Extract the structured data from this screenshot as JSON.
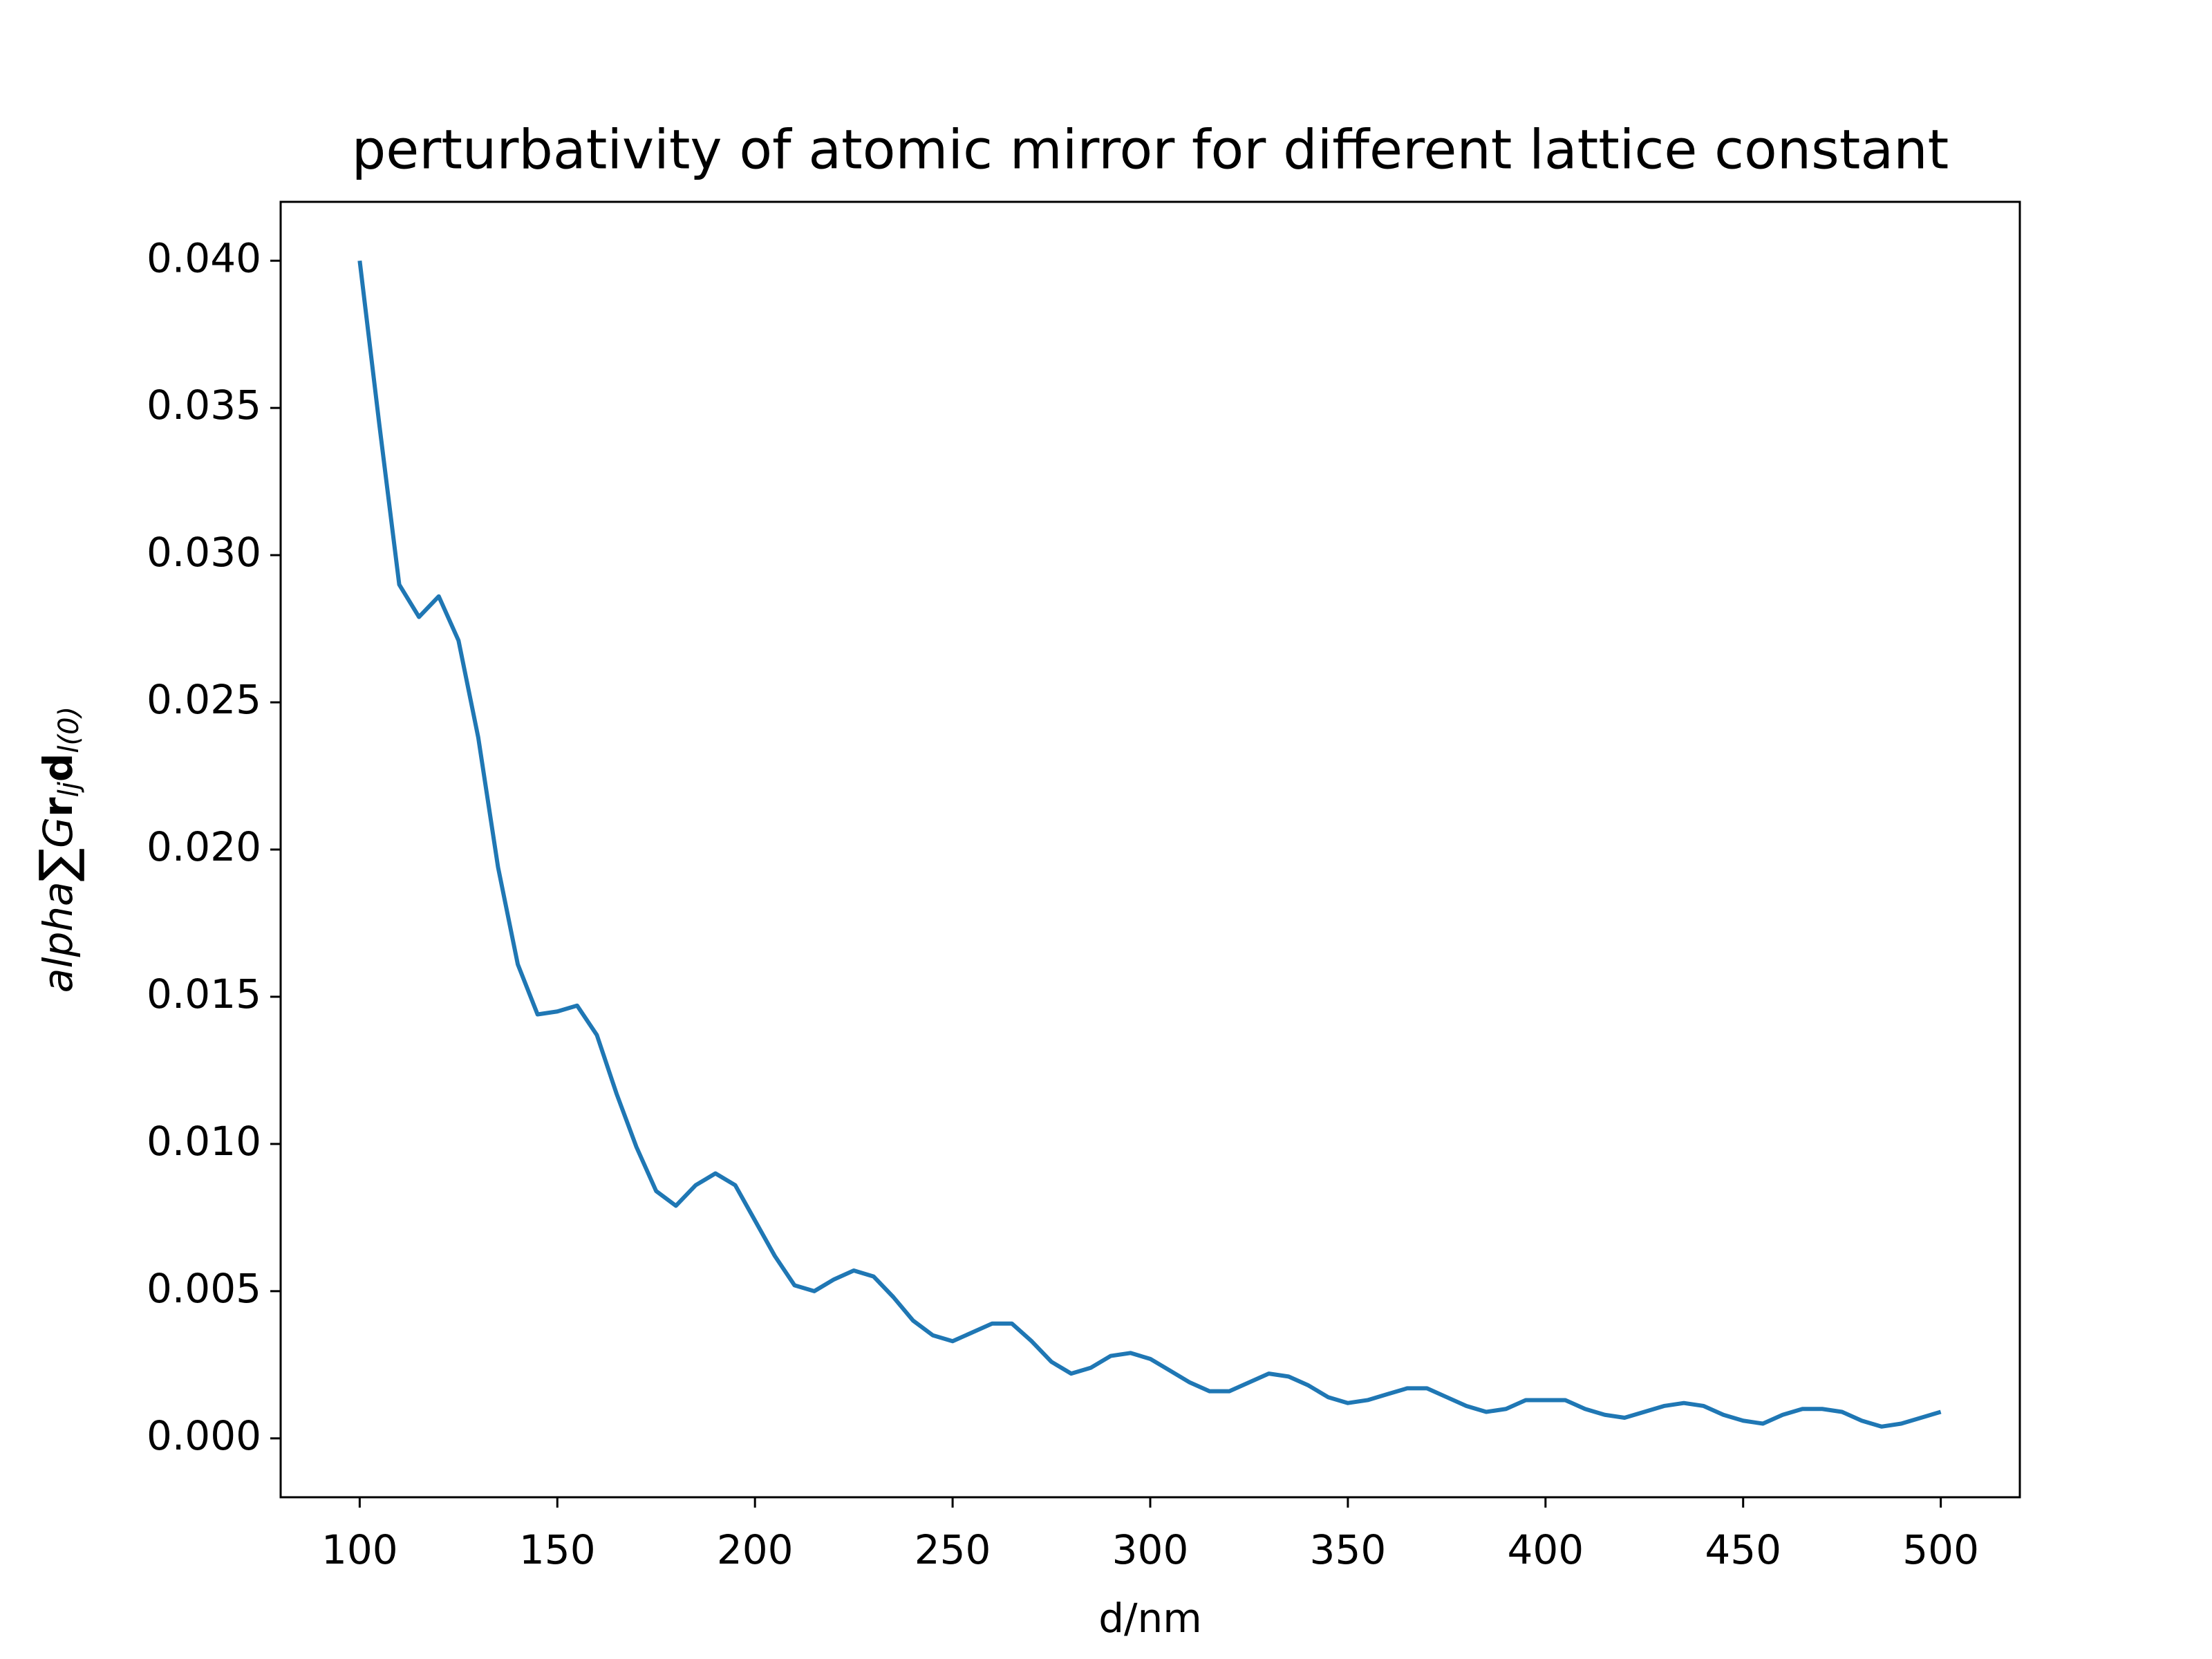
{
  "chart_data": {
    "type": "line",
    "title": "perturbativity of atomic mirror for different lattice constant",
    "xlabel": "d/nm",
    "ylabel": [
      "alpha",
      "∑",
      "G",
      "r",
      "lj",
      "d",
      "l(0)"
    ],
    "x": [
      100,
      105,
      110,
      115,
      120,
      125,
      130,
      135,
      140,
      145,
      150,
      155,
      160,
      165,
      170,
      175,
      180,
      185,
      190,
      195,
      200,
      205,
      210,
      215,
      220,
      225,
      230,
      235,
      240,
      245,
      250,
      255,
      260,
      265,
      270,
      275,
      280,
      285,
      290,
      295,
      300,
      305,
      310,
      315,
      320,
      325,
      330,
      335,
      340,
      345,
      350,
      355,
      360,
      365,
      370,
      375,
      380,
      385,
      390,
      395,
      400,
      405,
      410,
      415,
      420,
      425,
      430,
      435,
      440,
      445,
      450,
      455,
      460,
      465,
      470,
      475,
      480,
      485,
      490,
      495,
      500
    ],
    "series": [
      {
        "color": "#1f77b4",
        "values": [
          0.04,
          0.0344,
          0.029,
          0.0279,
          0.0286,
          0.0271,
          0.0238,
          0.0194,
          0.0161,
          0.0144,
          0.0145,
          0.0147,
          0.0137,
          0.0117,
          0.0099,
          0.0084,
          0.0079,
          0.0086,
          0.009,
          0.0086,
          0.0074,
          0.0062,
          0.0052,
          0.005,
          0.0054,
          0.0057,
          0.0055,
          0.0048,
          0.004,
          0.0035,
          0.0033,
          0.0036,
          0.0039,
          0.0039,
          0.0033,
          0.0026,
          0.0022,
          0.0024,
          0.0028,
          0.0029,
          0.0027,
          0.0023,
          0.0019,
          0.0016,
          0.0016,
          0.0019,
          0.0022,
          0.0021,
          0.0018,
          0.0014,
          0.0012,
          0.0013,
          0.0015,
          0.0017,
          0.0017,
          0.0014,
          0.0011,
          0.0009,
          0.001,
          0.0013,
          0.0013,
          0.0013,
          0.001,
          0.0008,
          0.0007,
          0.0009,
          0.0011,
          0.0012,
          0.0011,
          0.0008,
          0.0006,
          0.0005,
          0.0008,
          0.001,
          0.001,
          0.0009,
          0.0006,
          0.0004,
          0.0005,
          0.0007,
          0.0009
        ]
      }
    ],
    "xlim": [
      80,
      520
    ],
    "xticks": [
      100,
      150,
      200,
      250,
      300,
      350,
      400,
      450,
      500
    ],
    "ylim": [
      -0.002,
      0.042
    ],
    "yticks": [
      {
        "value": 0,
        "label": "0.000"
      },
      {
        "value": 0.005,
        "label": "0.005"
      },
      {
        "value": 0.01,
        "label": "0.010"
      },
      {
        "value": 0.015,
        "label": "0.015"
      },
      {
        "value": 0.02,
        "label": "0.020"
      },
      {
        "value": 0.025,
        "label": "0.025"
      },
      {
        "value": 0.03,
        "label": "0.030"
      },
      {
        "value": 0.035,
        "label": "0.035"
      },
      {
        "value": 0.04,
        "label": "0.040"
      }
    ],
    "grid": false
  }
}
